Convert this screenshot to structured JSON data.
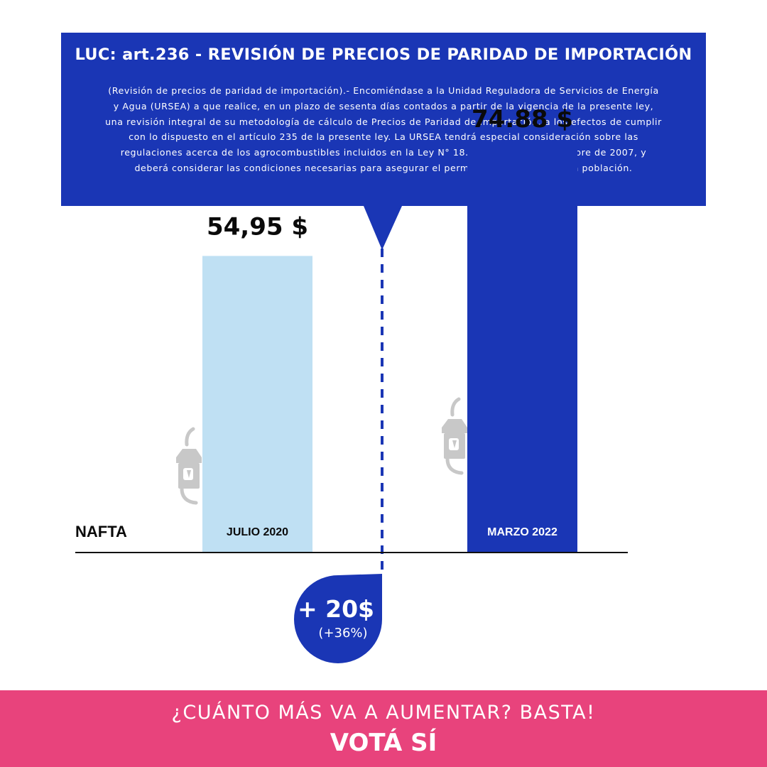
{
  "callout": {
    "title": "LUC: art.236 - REVISIÓN DE PRECIOS DE PARIDAD DE IMPORTACIÓN",
    "body": "(Revisión de precios de paridad de importación).- Encomiéndase a la Unidad Reguladora de Servicios de Energía y Agua (URSEA) a que realice, en un plazo de sesenta días contados a partir de la vigencia de la presente ley, una revisión integral de su metodología de cálculo de Precios de Paridad de Importación, a los efectos de cumplir con lo dispuesto en el artículo 235 de la presente ley. La URSEA tendrá especial consideración sobre las regulaciones acerca de los agrocombustibles incluidos en la Ley N° 18.195, de 14 de noviembre de 2007, y deberá considerar las condiciones necesarias para asegurar el permanente suministro a la población."
  },
  "chart_data": {
    "type": "bar",
    "category_label": "NAFTA",
    "categories": [
      "JULIO 2020",
      "MARZO 2022"
    ],
    "values": [
      54.95,
      74.88
    ],
    "value_labels": [
      "54,95 $",
      "74.88 $"
    ],
    "colors": [
      "#bfe0f3",
      "#1a36b5"
    ],
    "label_colors": [
      "#0a0a0a",
      "#ffffff"
    ],
    "ylim": [
      0,
      100
    ]
  },
  "delta": {
    "main": "+ 20$",
    "sub": "(+36%)"
  },
  "footer": {
    "question": "¿CUÁNTO MÁS VA A AUMENTAR? BASTA!",
    "cta": "VOTÁ SÍ"
  },
  "icons": [
    "fuel-pump-icon"
  ],
  "theme": {
    "blue": "#1a36b5",
    "pink": "#e8437c",
    "light_blue": "#bfe0f3",
    "icon_gray": "#c8c8c8"
  }
}
